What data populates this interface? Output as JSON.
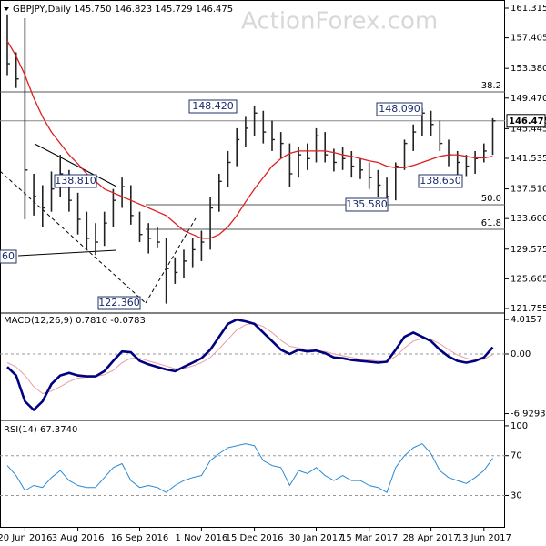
{
  "chart_data": [
    {
      "type": "ohlc",
      "title": "GBPJPY,Daily  145.750 146.823 145.729 146.475",
      "watermark": "ActionForex.com",
      "categories": [
        null,
        null,
        "20 Jun 2016",
        null,
        null,
        null,
        null,
        null,
        "3 Aug 2016",
        null,
        null,
        null,
        null,
        null,
        null,
        "16 Sep 2016",
        null,
        null,
        null,
        null,
        null,
        null,
        "1 Nov 2016",
        null,
        null,
        null,
        null,
        null,
        "15 Dec 2016",
        null,
        null,
        null,
        null,
        null,
        null,
        "30 Jan 2017",
        null,
        null,
        null,
        null,
        null,
        "15 Mar 2017",
        null,
        null,
        null,
        null,
        null,
        null,
        "28 Apr 2017",
        null,
        null,
        null,
        null,
        null,
        "13 Jun 2017",
        null
      ],
      "high": [
        160.5,
        155.5,
        160.0,
        139.5,
        138.0,
        139.8,
        142.0,
        140.0,
        137.0,
        134.5,
        133.0,
        134.5,
        137.5,
        139.0,
        138.0,
        134.5,
        133.0,
        132.5,
        131.0,
        128.5,
        129.5,
        131.0,
        132.0,
        136.5,
        139.5,
        142.5,
        145.5,
        147.0,
        148.4,
        147.8,
        146.5,
        145.0,
        143.5,
        143.0,
        143.5,
        145.5,
        145.0,
        142.8,
        143.0,
        142.5,
        141.5,
        141.0,
        140.0,
        139.0,
        141.0,
        144.0,
        146.0,
        148.1,
        147.8,
        146.5,
        144.0,
        142.5,
        142.0,
        142.5,
        143.5,
        146.823
      ],
      "low": [
        152.5,
        150.8,
        133.5,
        134.0,
        132.5,
        134.5,
        136.5,
        134.5,
        131.5,
        129.5,
        128.8,
        130.0,
        132.5,
        135.0,
        132.8,
        130.5,
        129.0,
        129.8,
        122.4,
        125.0,
        125.8,
        127.2,
        128.0,
        129.5,
        134.5,
        137.8,
        140.5,
        143.0,
        144.5,
        143.5,
        142.5,
        141.5,
        137.8,
        139.0,
        140.0,
        141.0,
        141.0,
        139.8,
        140.0,
        139.0,
        138.8,
        137.5,
        136.5,
        135.6,
        136.0,
        140.0,
        142.5,
        144.5,
        144.5,
        142.5,
        140.5,
        138.7,
        139.2,
        139.5,
        141.0,
        142.0
      ],
      "close": [
        154.0,
        152.0,
        140.0,
        136.5,
        135.0,
        137.5,
        139.5,
        136.0,
        133.5,
        131.0,
        130.5,
        133.0,
        136.0,
        137.8,
        134.0,
        131.5,
        131.0,
        130.5,
        127.0,
        126.5,
        128.0,
        129.5,
        130.5,
        135.0,
        138.5,
        141.0,
        144.0,
        145.5,
        147.5,
        145.0,
        144.0,
        143.5,
        139.5,
        142.0,
        141.5,
        144.5,
        142.0,
        141.0,
        141.5,
        140.5,
        140.0,
        139.0,
        138.0,
        136.5,
        140.5,
        143.5,
        145.0,
        147.5,
        146.0,
        143.5,
        142.0,
        141.0,
        140.5,
        141.5,
        142.5,
        146.475
      ],
      "bar_color": "#222222",
      "ma": [
        157,
        155,
        152.5,
        149.5,
        147,
        145,
        143.5,
        142,
        140.8,
        139.5,
        138.5,
        137.5,
        137,
        136.5,
        136,
        135.5,
        135,
        134.5,
        134,
        133,
        132,
        131.5,
        131,
        131,
        131.5,
        132.5,
        134,
        135.8,
        137.5,
        139,
        140.5,
        141.5,
        142.2,
        142.5,
        142.5,
        142.5,
        142.5,
        142.3,
        142,
        141.8,
        141.5,
        141.2,
        141,
        140.5,
        140.3,
        140.3,
        140.6,
        141,
        141.4,
        141.8,
        142,
        142,
        141.8,
        141.6,
        141.6,
        141.8
      ],
      "ma_color": "#dd1f1f",
      "last_price": 146.475,
      "levels": [
        {
          "label": "38.2",
          "value": 150.29
        },
        {
          "label": "50.0",
          "value": 135.42
        },
        {
          "label": "61.8",
          "value": 132.19
        }
      ],
      "annotations": [
        "148.420",
        "148.090",
        "138.810",
        "138.650",
        "135.580",
        "122.360",
        "60"
      ],
      "ylim": [
        121.155,
        162.394
      ],
      "yticks": [
        161.315,
        157.405,
        {
          "value": 153.38,
          "label": "153.380"
        },
        {
          "value": 149.47,
          "label": "149.470"
        },
        145.445,
        141.535,
        {
          "value": 137.51,
          "label": "137.510"
        },
        {
          "value": 133.6,
          "label": "133.600"
        },
        129.575,
        125.665,
        121.755
      ]
    },
    {
      "type": "line",
      "title": "MACD(12,26,9) 0.7810 -0.0783",
      "lines": [
        {
          "color": "#000080",
          "width": 2.6,
          "values": [
            -1.5,
            -2.5,
            -5.5,
            -6.5,
            -5.5,
            -3.5,
            -2.5,
            -2.2,
            -2.5,
            -2.6,
            -2.6,
            -2.0,
            -0.8,
            0.3,
            0.2,
            -0.8,
            -1.2,
            -1.5,
            -1.8,
            -2.0,
            -1.5,
            -1.0,
            -0.5,
            0.5,
            2.0,
            3.5,
            4.0,
            3.8,
            3.5,
            2.5,
            1.5,
            0.5,
            0,
            0.5,
            0.3,
            0.4,
            0.1,
            -0.4,
            -0.5,
            -0.7,
            -0.8,
            -0.9,
            -1.0,
            -0.9,
            0.5,
            2.0,
            2.5,
            2.0,
            1.5,
            0.5,
            -0.3,
            -0.8,
            -1.0,
            -0.8,
            -0.4,
            0.781
          ]
        },
        {
          "color": "#e8a0a0",
          "width": 1,
          "values": [
            -1.0,
            -1.5,
            -2.5,
            -3.8,
            -4.6,
            -4.3,
            -3.8,
            -3.2,
            -2.8,
            -2.7,
            -2.6,
            -2.4,
            -1.9,
            -1.0,
            -0.5,
            -0.5,
            -0.8,
            -1.1,
            -1.4,
            -1.7,
            -1.7,
            -1.4,
            -1.0,
            -0.4,
            0.6,
            1.7,
            2.8,
            3.4,
            3.6,
            3.2,
            2.5,
            1.6,
            0.9,
            0.7,
            0.5,
            0.4,
            0.3,
            0,
            -0.2,
            -0.4,
            -0.6,
            -0.7,
            -0.8,
            -0.9,
            -0.3,
            0.7,
            1.5,
            1.8,
            1.7,
            1.2,
            0.5,
            -0.1,
            -0.5,
            -0.7,
            -0.6,
            -0.0783
          ]
        }
      ],
      "levels": [
        0
      ],
      "ylim": [
        -7.72,
        4.76
      ],
      "yticks": [
        4.0157,
        {
          "value": 0,
          "label": "0.00"
        },
        -6.9293
      ]
    },
    {
      "type": "line",
      "title": "RSI(14) 67.3740",
      "lines": [
        {
          "color": "#2a8ad4",
          "width": 1,
          "values": [
            60,
            50,
            35,
            40,
            38,
            48,
            55,
            45,
            40,
            38,
            38,
            48,
            58,
            62,
            45,
            38,
            40,
            38,
            33,
            40,
            45,
            48,
            50,
            65,
            72,
            78,
            80,
            82,
            80,
            65,
            60,
            58,
            40,
            55,
            52,
            58,
            50,
            45,
            50,
            45,
            45,
            40,
            38,
            33,
            58,
            70,
            78,
            82,
            72,
            55,
            48,
            45,
            42,
            48,
            55,
            67.374
          ]
        }
      ],
      "levels": [
        70,
        30
      ],
      "ylim": [
        -2.5,
        105.4
      ],
      "yticks": [
        100,
        70,
        30
      ]
    }
  ]
}
